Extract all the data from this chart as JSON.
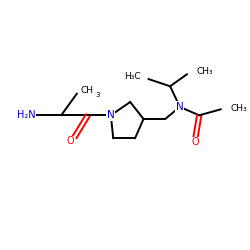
{
  "bg_color": "#ffffff",
  "bond_color": "#000000",
  "N_color": "#0000cc",
  "O_color": "#ff0000",
  "line_width": 1.4,
  "figsize": [
    2.5,
    2.5
  ],
  "dpi": 100,
  "xlim": [
    0,
    10
  ],
  "ylim": [
    1,
    9
  ]
}
